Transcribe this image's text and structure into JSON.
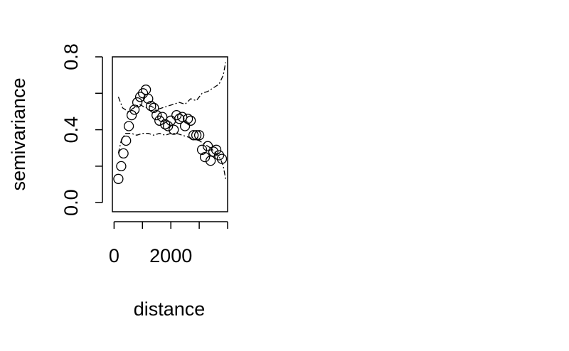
{
  "chart_data": {
    "type": "scatter",
    "title": "",
    "xlabel": "distance",
    "ylabel": "semivariance",
    "xlim": [
      -60,
      4000
    ],
    "ylim": [
      -0.05,
      0.8
    ],
    "x_ticks": [
      0,
      1000,
      2000,
      3000,
      4000
    ],
    "x_tick_labels": [
      "0",
      "",
      "2000",
      "",
      ""
    ],
    "y_ticks": [
      0.0,
      0.2,
      0.4,
      0.6,
      0.8
    ],
    "y_tick_labels": [
      "0.0",
      "",
      "0.4",
      "",
      "0.8"
    ],
    "grid": false,
    "legend": "none",
    "colors": {
      "points": "#000000",
      "envelope": "#000000",
      "background": "#ffffff"
    },
    "series": [
      {
        "type": "points",
        "marker": "open-circle",
        "x": [
          150,
          250,
          330,
          420,
          520,
          620,
          720,
          820,
          920,
          1020,
          1120,
          1200,
          1300,
          1400,
          1500,
          1600,
          1700,
          1800,
          1900,
          2000,
          2100,
          2200,
          2300,
          2400,
          2500,
          2600,
          2700,
          2800,
          2900,
          3000,
          3100,
          3200,
          3300,
          3400,
          3500,
          3600,
          3700,
          3800
        ],
        "y": [
          0.13,
          0.2,
          0.27,
          0.34,
          0.42,
          0.48,
          0.51,
          0.55,
          0.58,
          0.6,
          0.62,
          0.57,
          0.53,
          0.52,
          0.48,
          0.45,
          0.47,
          0.43,
          0.42,
          0.45,
          0.4,
          0.48,
          0.46,
          0.47,
          0.42,
          0.46,
          0.45,
          0.37,
          0.37,
          0.37,
          0.29,
          0.25,
          0.31,
          0.23,
          0.28,
          0.29,
          0.26,
          0.24
        ]
      },
      {
        "type": "line",
        "style": "dash-dot",
        "x": [
          150,
          300,
          500,
          700,
          900,
          1100,
          1300,
          1500,
          1700,
          1900,
          2100,
          2300,
          2500,
          2700,
          2900,
          3100,
          3300,
          3500,
          3700,
          3850,
          3930
        ],
        "y": [
          0.58,
          0.52,
          0.5,
          0.52,
          0.54,
          0.52,
          0.53,
          0.51,
          0.52,
          0.53,
          0.54,
          0.55,
          0.54,
          0.57,
          0.56,
          0.6,
          0.61,
          0.63,
          0.65,
          0.7,
          0.77
        ]
      },
      {
        "type": "line",
        "style": "dash-dot",
        "x": [
          150,
          250,
          400,
          600,
          800,
          1000,
          1200,
          1400,
          1600,
          1800,
          2000,
          2200,
          2400,
          2600,
          2800,
          3000,
          3200,
          3400,
          3600,
          3750,
          3850,
          3930
        ],
        "y": [
          0.27,
          0.34,
          0.38,
          0.38,
          0.37,
          0.38,
          0.38,
          0.37,
          0.38,
          0.37,
          0.38,
          0.38,
          0.37,
          0.36,
          0.35,
          0.34,
          0.32,
          0.3,
          0.27,
          0.24,
          0.2,
          0.13
        ]
      }
    ]
  }
}
